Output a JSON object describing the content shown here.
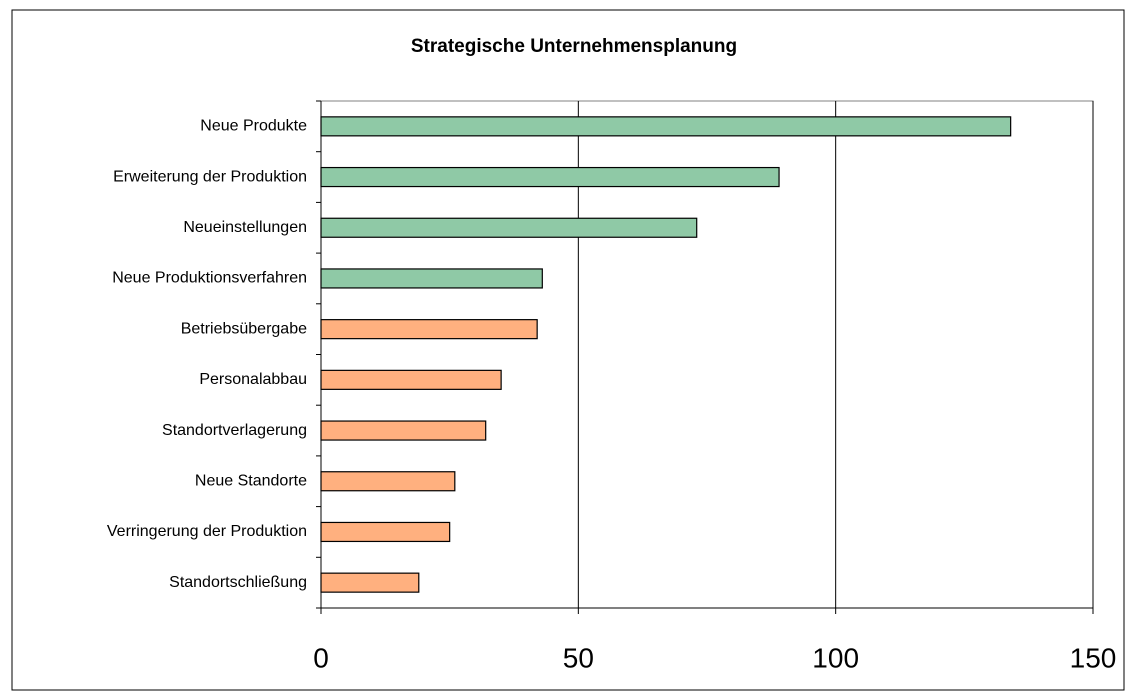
{
  "chart_data": {
    "type": "bar",
    "orientation": "horizontal",
    "title": "Strategische Unternehmensplanung",
    "categories": [
      "Neue Produkte",
      "Erweiterung der Produktion",
      "Neueinstellungen",
      "Neue Produktionsverfahren",
      "Betriebsübergabe",
      "Personalabbau",
      "Standortverlagerung",
      "Neue Standorte",
      "Verringerung der Produktion",
      "Standortschließung"
    ],
    "values": [
      134,
      89,
      73,
      43,
      42,
      35,
      32,
      26,
      25,
      19
    ],
    "colors": [
      "#8fc9a6",
      "#8fc9a6",
      "#8fc9a6",
      "#8fc9a6",
      "#ffb07f",
      "#ffb07f",
      "#ffb07f",
      "#ffb07f",
      "#ffb07f",
      "#ffb07f"
    ],
    "xlim": [
      0,
      150
    ],
    "xticks": [
      0,
      50,
      100,
      150
    ],
    "grid": true
  }
}
